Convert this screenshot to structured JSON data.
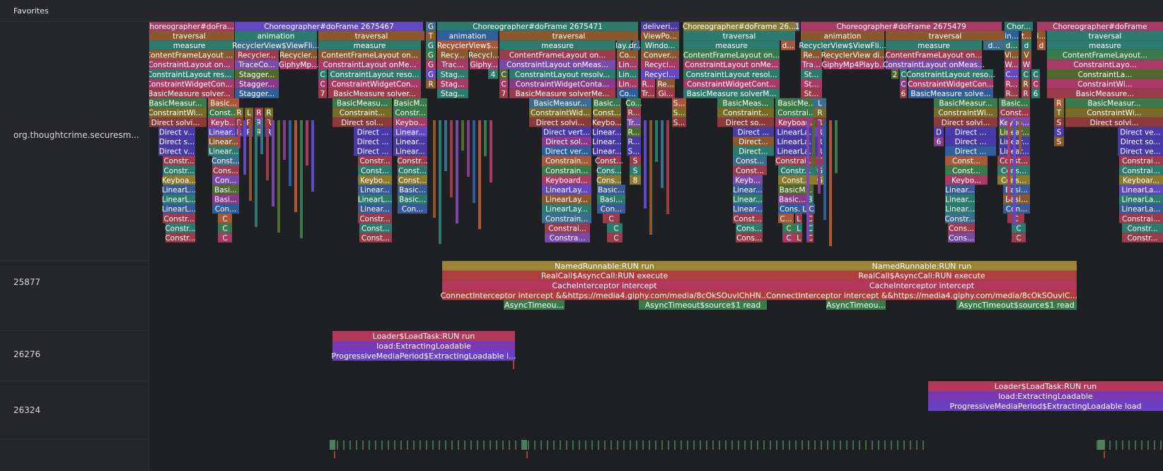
{
  "header": {
    "title": "Favorites"
  },
  "tracks": [
    {
      "id": "main",
      "label": "org.thoughtcrime.securesm..."
    },
    {
      "id": "t25877",
      "label": "25877"
    },
    {
      "id": "t26276",
      "label": "26276"
    },
    {
      "id": "t26324",
      "label": "26324"
    }
  ],
  "colors": {
    "background": "#1f2023",
    "sidebar": "#25262a",
    "choreographer_pink": "#a83a66",
    "animation_purple": "#6248c4",
    "traversal_brown": "#8c5830",
    "measure_teal": "#2d7b6e",
    "named_runnable_gold": "#9c8636",
    "realcall_red": "#b03e3e",
    "cache_pink": "#b2385c",
    "async_green": "#3b7a4a"
  },
  "main_slices": {
    "top": [
      "Choreographer#doFra...",
      "Choreographer#doFrame 2675467",
      "G",
      "Choreographer#doFrame 2675471",
      "deliveri...",
      "Choreographer#doFrame 26...",
      "1",
      "Choreographer#doFrame 2675479",
      "Chor...",
      "Choreographer#doFrame"
    ],
    "level1": [
      "traversal",
      "animation",
      "traversal",
      "T",
      "animation",
      "traversal",
      "ViewPo...",
      "traversal",
      "animation",
      "traversal",
      "in...",
      "t...",
      "i...",
      "traversal"
    ],
    "level2": [
      "measure",
      "RecyclerView$ViewFli...",
      "measure",
      "G",
      "RecyclerView$...",
      "measure",
      "lay...",
      "dr...",
      "Windo...",
      "measure",
      "d...",
      "RecyclerView$ViewFli...",
      "measure",
      "d...",
      "d...",
      "d",
      "d",
      "measure"
    ],
    "level3": [
      "ContentFrameLayout ...",
      "Recycler...",
      "Recycler...",
      "ContentFrameLayout on...",
      "G",
      "Recy...",
      "Recycl...",
      "ContentFrameLayout on...",
      "Co...",
      "Conver...",
      "ContentFrameLayout on...",
      "Re...",
      "RecyclerView di...",
      "ContentFrameLayout on...",
      "Vi...",
      "V",
      "ContentFrameLayout..."
    ],
    "level4": [
      "ConstraintLayout on...",
      "TraceCo...",
      "GiphyMp...",
      "ConstraintLayout onMe...",
      "G",
      "Trac...",
      "Giphy...",
      "ConstraintLayout onMeas...",
      "Lin...",
      "Recycl...",
      "ConstraintLayout onMe...",
      "Tra...",
      "GiphyMp4Playb...",
      "ConstraintLayout onMeas...",
      "W...",
      "W",
      "ConstraintLayo..."
    ],
    "level5": [
      "ConstraintLayout res...",
      "Stagger...",
      "C",
      "ConstraintLayout reso...",
      "G",
      "Stag...",
      "4",
      "C",
      "ConstraintLayout resolv...",
      "Lin...",
      "Recycl...",
      "ConstraintLayout resol...",
      "St...",
      "2",
      "C",
      "ConstraintLayout reso...",
      "C...",
      "C",
      "C",
      "ConstraintLa..."
    ],
    "level6": [
      "ConstraintWidgetCon...",
      "Stagger...",
      "C",
      "ConstraintWidgetCon...",
      "R",
      "Stag...",
      "C",
      "ConstraintWidgetConta...",
      "Lin...",
      "R...",
      "Re...",
      "ConstraintWidgetCont...",
      "St...",
      "C",
      "ConstraintWidgetCon...",
      "R...",
      "R",
      "C",
      "ConstraintWi..."
    ],
    "level7": [
      "BasicMeasure solver...",
      "Stagger...",
      "7",
      "BasicMeasure solver...",
      "Stag...",
      "7",
      "BasicMeasure solverMe...",
      "Co...",
      "Tr...",
      "Gi...",
      "BasicMeasure solverM...",
      "St...",
      "6",
      "BasicMeasure solve...",
      "R...",
      "R",
      "6",
      "BasicMeasure..."
    ],
    "level8": [
      "BasicMeasur...",
      "Basic...",
      "BasicMeasu...",
      "BasicM...",
      "BasicMeasur...",
      "Basic...",
      "Co...",
      "S...",
      "BasicMeas...",
      "BasicMe...",
      "L",
      "BasicMeasur...",
      "Basic...",
      "R",
      "BasicMeasur..."
    ],
    "level9": [
      "ConstraintWi...",
      "Const...",
      "R",
      "L",
      "R",
      "R",
      "Constraint...",
      "Constr...",
      "ConstraintWid...",
      "Const...",
      "R...",
      "S...",
      "Constraint...",
      "Constrai...",
      "R",
      "ConstraintWi...",
      "Const...",
      "T",
      "ConstraintWi..."
    ],
    "level10": [
      "Direct solvi...",
      "Keyb...",
      "R",
      "R",
      "R",
      "R",
      "Direct sol...",
      "Keybo...",
      "Direct solvi...",
      "Keybo...",
      "Tr...",
      "S...",
      "Direct so...",
      "Keyboar...",
      "R",
      "Direct solvi...",
      "Keybo...",
      "S",
      "Direct solvi..."
    ],
    "level11": [
      "Direct v...",
      "Linear...",
      "R",
      "R",
      "R",
      "R",
      "Direct ...",
      "Linear...",
      "Direct vert...",
      "Linear...",
      "R...",
      "Direct ...",
      "LinearLa...",
      "R",
      "D",
      "Direct ...",
      "Linear...",
      "S",
      "Direct ve..."
    ],
    "level12": [
      "Direct s...",
      "Linear...",
      "Direct ...",
      "Linear...",
      "Direct sol...",
      "Linear...",
      "R...",
      "Direct...",
      "LinearLa...",
      "R",
      "6",
      "Direct ...",
      "Linear...",
      "S",
      "Direct so..."
    ],
    "level13": [
      "Direct v...",
      "Linear...",
      "Direct ...",
      "Linear...",
      "Direct ver...",
      "Linear...",
      "S...",
      "Direct...",
      "LinearLa...",
      "R",
      "Direct ...",
      "Linear...",
      "Direct ve..."
    ],
    "level14": [
      "Constr...",
      "Const...",
      "Constr...",
      "Constr...",
      "Constrain...",
      "Const...",
      "S",
      "Const...",
      "Constrai...",
      "T",
      "Const...",
      "Const...",
      "Constrai..."
    ],
    "level15": [
      "Constr...",
      "Cons...",
      "Const...",
      "Const...",
      "Constrain...",
      "Cons...",
      "S",
      "Const...",
      "Constr...",
      "G",
      "Const...",
      "Cons...",
      "Constrai..."
    ],
    "level16": [
      "Keyboa...",
      "Con...",
      "Keybo...",
      "Const...",
      "Keyboard...",
      "Cons...",
      "8",
      "Keyb...",
      "Const...",
      "G",
      "Keybo...",
      "Cons...",
      "Keyboar..."
    ],
    "level17": [
      "LinearL...",
      "Basi...",
      "Linear...",
      "Basic...",
      "LinearLay...",
      "Basic...",
      "Linear...",
      "BasicM...",
      "Linear...",
      "Basi...",
      "LinearLa..."
    ],
    "level18": [
      "LinearL...",
      "Basi...",
      "LinearL...",
      "Basic...",
      "LinearLay...",
      "Basi...",
      "Linear...",
      "Basic...",
      "B",
      "Linear...",
      "Basi...",
      "LinearLa..."
    ],
    "level19": [
      "LinearL...",
      "Con...",
      "Linear...",
      "Con...",
      "LinearLay...",
      "Con...",
      "Linear...",
      "Cons...",
      "L",
      "C",
      "Linear...",
      "Con...",
      "LinearLa..."
    ],
    "level20": [
      "Constr...",
      "C",
      "Constr...",
      "C",
      "Constrain...",
      "C",
      "Const...",
      "C...",
      "L",
      "C",
      "Constr...",
      "C",
      "Constrai..."
    ],
    "level21": [
      "Constr...",
      "C",
      "Const...",
      "C",
      "Constrai...",
      "C",
      "Cons...",
      "C",
      "L",
      "C",
      "Cons...",
      "C",
      "Constr..."
    ],
    "level22": [
      "Constr...",
      "C",
      "Const...",
      "C",
      "Constra...",
      "C",
      "Cons...",
      "C",
      "L",
      "C",
      "Cons...",
      "C",
      "Constr..."
    ]
  },
  "t25877_slices": [
    "NamedRunnable:RUN run",
    "RealCall$AsyncCall:RUN execute",
    "CacheInterceptor intercept",
    "ConnectInterceptor intercept &&https://media4.giphy.com/media/8cOkSOuvlChHN...",
    "AsyncTimeou...",
    "AsyncTimeout$source$1 read",
    "NamedRunnable:RUN run",
    "RealCall$AsyncCall:RUN execute",
    "CacheInterceptor intercept",
    "ConnectInterceptor intercept &&https://media4.giphy.com/media/8cOkSOuvlC...",
    "AsyncTimeou...",
    "AsyncTimeout$source$1 read"
  ],
  "t26276_slices": [
    "Loader$LoadTask:RUN run",
    "load:ExtractingLoadable",
    "ProgressiveMediaPeriod$ExtractingLoadable l..."
  ],
  "t26324_slices": [
    "Loader$LoadTask:RUN run",
    "load:ExtractingLoadable",
    "ProgressiveMediaPeriod$ExtractingLoadable load"
  ]
}
